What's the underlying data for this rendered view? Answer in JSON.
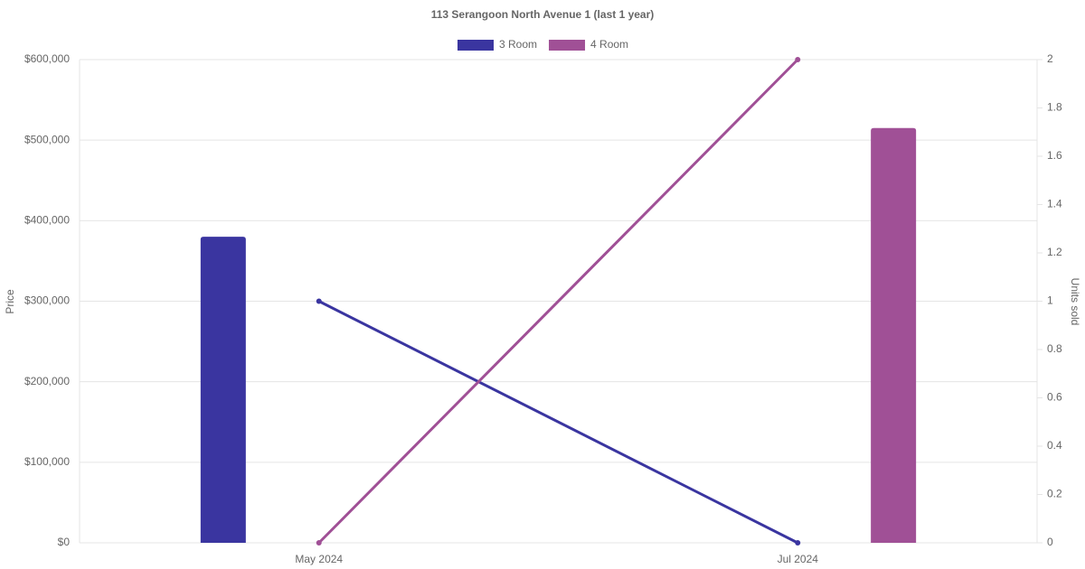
{
  "chart_data": {
    "type": "combo",
    "title": "113 Serangoon North Avenue 1 (last 1 year)",
    "y_label": "Price",
    "y2_label": "Units sold",
    "categories": [
      "May 2024",
      "Jul 2024"
    ],
    "series": [
      {
        "name": "3 Room",
        "color": "#3a35a0",
        "values": [
          380000,
          null
        ],
        "units": [
          1,
          0
        ]
      },
      {
        "name": "4 Room",
        "color": "#a05096",
        "values": [
          null,
          515000
        ],
        "units": [
          0,
          2
        ]
      }
    ],
    "ylim": [
      0,
      600000
    ],
    "yticks": [
      {
        "value": 0,
        "label": "$0"
      },
      {
        "value": 100000,
        "label": "$100,000"
      },
      {
        "value": 200000,
        "label": "$200,000"
      },
      {
        "value": 300000,
        "label": "$300,000"
      },
      {
        "value": 400000,
        "label": "$400,000"
      },
      {
        "value": 500000,
        "label": "$500,000"
      },
      {
        "value": 600000,
        "label": "$600,000"
      }
    ],
    "y2lim": [
      0,
      2
    ],
    "y2ticks": [
      0,
      0.2,
      0.4,
      0.6,
      0.8,
      1,
      1.2,
      1.4,
      1.6,
      1.8,
      2
    ],
    "grid": true
  }
}
